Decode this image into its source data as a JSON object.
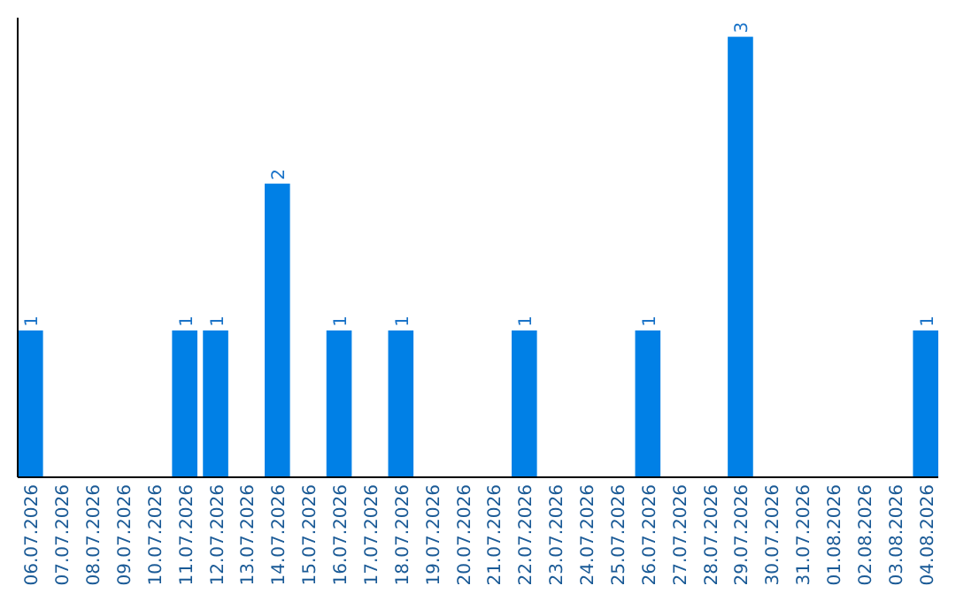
{
  "chart_data": {
    "type": "bar",
    "categories": [
      "06.07.2026",
      "07.07.2026",
      "08.07.2026",
      "09.07.2026",
      "10.07.2026",
      "11.07.2026",
      "12.07.2026",
      "13.07.2026",
      "14.07.2026",
      "15.07.2026",
      "16.07.2026",
      "17.07.2026",
      "18.07.2026",
      "19.07.2026",
      "20.07.2026",
      "21.07.2026",
      "22.07.2026",
      "23.07.2026",
      "24.07.2026",
      "25.07.2026",
      "26.07.2026",
      "27.07.2026",
      "28.07.2026",
      "29.07.2026",
      "30.07.2026",
      "31.07.2026",
      "01.08.2026",
      "02.08.2026",
      "03.08.2026",
      "04.08.2026"
    ],
    "values": [
      1,
      0,
      0,
      0,
      0,
      1,
      1,
      0,
      2,
      0,
      1,
      0,
      1,
      0,
      0,
      0,
      1,
      0,
      0,
      0,
      1,
      0,
      0,
      3,
      0,
      0,
      0,
      0,
      0,
      1
    ],
    "value_labels": [
      "1",
      null,
      null,
      null,
      null,
      "1",
      "1",
      null,
      "2",
      null,
      "1",
      null,
      "1",
      null,
      null,
      null,
      "1",
      null,
      null,
      null,
      "1",
      null,
      null,
      "3",
      null,
      null,
      null,
      null,
      null,
      "1"
    ],
    "color": "#0080e6",
    "ylim": [
      0,
      3.13
    ],
    "tick_labels": "x",
    "grid": false
  }
}
